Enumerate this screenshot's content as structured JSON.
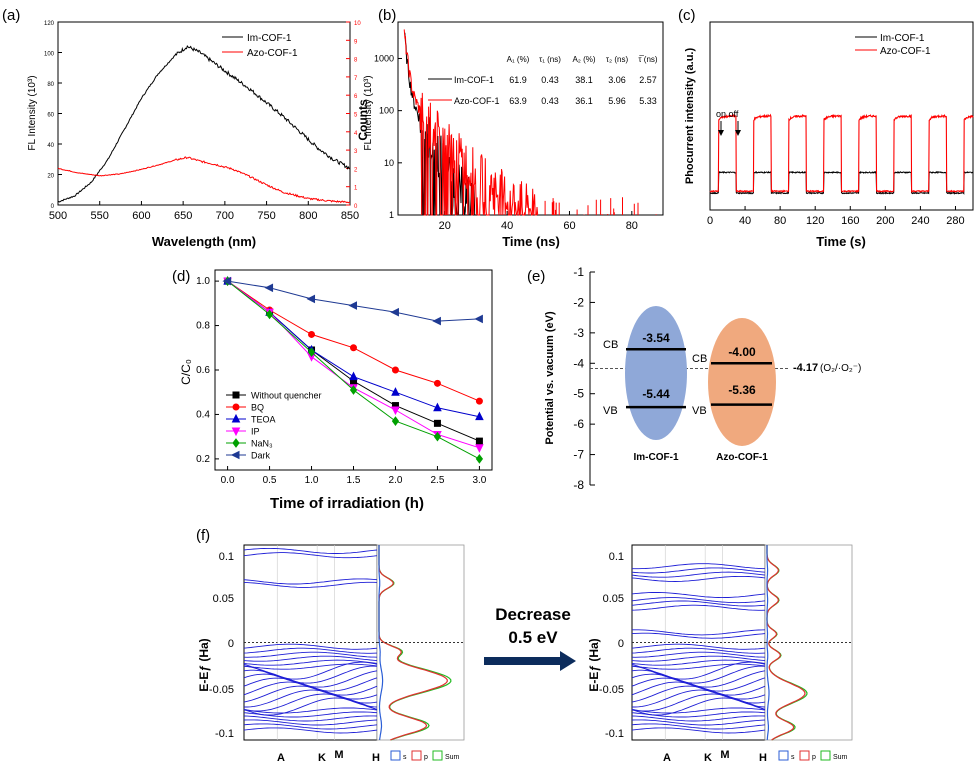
{
  "colors": {
    "black": "#000000",
    "red": "#ff0000",
    "blue": "#0000cc",
    "magenta": "#ff00ff",
    "green": "#00a000",
    "navy": "#1f3a93",
    "ellipse_blue": "#8fa8d8",
    "ellipse_orange": "#f0a97e",
    "arrow": "#0c2c5c"
  },
  "chart_data": [
    {
      "panel": "(a)",
      "type": "line",
      "xlabel": "Wavelength (nm)",
      "ylabel": "FL Intensity (10³)",
      "ylabel_right": "FL Intensity (10³)",
      "xlim": [
        500,
        850
      ],
      "ylim": [
        0,
        120
      ],
      "ylim_right": [
        0,
        10
      ],
      "x_ticks": [
        "500",
        "550",
        "600",
        "650",
        "700",
        "750",
        "800",
        "850"
      ],
      "y_ticks": [
        "0",
        "20",
        "40",
        "60",
        "80",
        "100",
        "120"
      ],
      "y_ticks_right": [
        "0",
        "1",
        "2",
        "3",
        "4",
        "5",
        "6",
        "7",
        "8",
        "9",
        "10"
      ],
      "series": [
        {
          "name": "Im-COF-1",
          "axis": "left",
          "x": [
            500,
            520,
            540,
            560,
            580,
            600,
            620,
            640,
            655,
            670,
            690,
            710,
            730,
            750,
            770,
            790,
            810,
            830,
            850
          ],
          "values": [
            2,
            6,
            15,
            30,
            50,
            70,
            86,
            98,
            104,
            100,
            92,
            84,
            76,
            67,
            58,
            48,
            38,
            30,
            24
          ]
        },
        {
          "name": "Azo-COF-1",
          "axis": "right",
          "x": [
            500,
            525,
            550,
            575,
            600,
            625,
            640,
            655,
            670,
            690,
            710,
            730,
            750,
            770,
            800,
            830,
            850
          ],
          "values": [
            2.0,
            1.75,
            1.6,
            1.7,
            1.95,
            2.25,
            2.45,
            2.6,
            2.4,
            2.2,
            1.95,
            1.55,
            1.1,
            0.7,
            0.35,
            0.2,
            0.15
          ]
        }
      ]
    },
    {
      "panel": "(b)",
      "type": "line",
      "xlabel": "Time (ns)",
      "ylabel": "Counts",
      "yscale": "log",
      "xlim": [
        5,
        90
      ],
      "ylim": [
        1,
        5000
      ],
      "x_ticks": [
        "20",
        "40",
        "60",
        "80"
      ],
      "y_ticks": [
        "1",
        "10",
        "100",
        "1000"
      ],
      "series": [
        {
          "name": "Im-COF-1",
          "x": [
            7,
            8,
            9,
            10,
            12,
            14,
            16,
            18,
            20,
            22,
            25,
            28,
            31
          ],
          "values": [
            3000,
            800,
            300,
            150,
            70,
            40,
            25,
            15,
            9,
            5,
            3,
            2,
            1
          ]
        },
        {
          "name": "Azo-COF-1",
          "x": [
            7,
            8,
            9,
            10,
            12,
            14,
            16,
            18,
            20,
            25,
            30,
            35,
            40,
            45,
            50
          ],
          "values": [
            3000,
            1000,
            400,
            200,
            100,
            65,
            45,
            32,
            24,
            12,
            6,
            3.5,
            2.2,
            1.5,
            1
          ]
        }
      ],
      "table": {
        "headers": [
          "A₁ (%)",
          "τ₁ (ns)",
          "A₂ (%)",
          "τ₂ (ns)",
          "τ̅ (ns)"
        ],
        "rows": [
          {
            "label": "Im-COF-1",
            "cells": [
              "61.9",
              "0.43",
              "38.1",
              "3.06",
              "2.57"
            ]
          },
          {
            "label": "Azo-COF-1",
            "cells": [
              "63.9",
              "0.43",
              "36.1",
              "5.96",
              "5.33"
            ]
          }
        ]
      }
    },
    {
      "panel": "(c)",
      "type": "line",
      "xlabel": "Time (s)",
      "ylabel": "Phocurrent intensity (a.u.)",
      "xlim": [
        0,
        300
      ],
      "ylim": [
        0,
        1
      ],
      "x_ticks": [
        "0",
        "40",
        "80",
        "120",
        "160",
        "200",
        "240",
        "280"
      ],
      "annotation": "on off",
      "series": [
        {
          "name": "Im-COF-1",
          "on_level": 0.2,
          "off_level": 0.09
        },
        {
          "name": "Azo-COF-1",
          "on_level": 0.48,
          "off_level": 0.1
        }
      ],
      "on_periods": [
        [
          10,
          30
        ],
        [
          50,
          70
        ],
        [
          90,
          110
        ],
        [
          130,
          150
        ],
        [
          170,
          190
        ],
        [
          210,
          230
        ],
        [
          250,
          270
        ],
        [
          290,
          310
        ]
      ]
    },
    {
      "panel": "(d)",
      "type": "line",
      "xlabel": "Time of irradiation (h)",
      "ylabel": "C/C₀",
      "xlim": [
        -0.15,
        3.15
      ],
      "ylim": [
        0.15,
        1.05
      ],
      "x_ticks": [
        "0.0",
        "0.5",
        "1.0",
        "1.5",
        "2.0",
        "2.5",
        "3.0"
      ],
      "y_ticks": [
        "0.2",
        "0.4",
        "0.6",
        "0.8",
        "1.0"
      ],
      "x": [
        0,
        0.5,
        1.0,
        1.5,
        2.0,
        2.5,
        3.0
      ],
      "series": [
        {
          "name": "Without quencher",
          "marker": "square",
          "values": [
            1.0,
            0.86,
            0.69,
            0.55,
            0.44,
            0.36,
            0.28
          ]
        },
        {
          "name": "BQ",
          "marker": "circle",
          "values": [
            1.0,
            0.87,
            0.76,
            0.7,
            0.6,
            0.54,
            0.46
          ]
        },
        {
          "name": "TEOA",
          "marker": "triangle",
          "values": [
            1.0,
            0.86,
            0.69,
            0.57,
            0.5,
            0.43,
            0.39
          ]
        },
        {
          "name": "IP",
          "marker": "triangle-down",
          "values": [
            1.0,
            0.86,
            0.66,
            0.52,
            0.42,
            0.31,
            0.25
          ]
        },
        {
          "name": "NaN₃",
          "marker": "diamond",
          "values": [
            1.0,
            0.85,
            0.68,
            0.51,
            0.37,
            0.3,
            0.2
          ]
        },
        {
          "name": "Dark",
          "marker": "triangle-left",
          "values": [
            1.0,
            0.97,
            0.92,
            0.89,
            0.86,
            0.82,
            0.83
          ]
        }
      ]
    },
    {
      "panel": "(e)",
      "type": "diagram",
      "ylabel": "Potential vs. vacuum (eV)",
      "ylim": [
        -8,
        -1
      ],
      "y_ticks": [
        "-1",
        "-2",
        "-3",
        "-4",
        "-5",
        "-6",
        "-7",
        "-8"
      ],
      "reference": {
        "value": -4.17,
        "label": "-4.17",
        "species": "(O₂/·O₂⁻)"
      },
      "materials": [
        {
          "name": "Im-COF-1",
          "cb": -3.54,
          "vb": -5.44,
          "cb_text": "-3.54",
          "vb_text": "-5.44"
        },
        {
          "name": "Azo-COF-1",
          "cb": -4.0,
          "vb": -5.36,
          "cb_text": "-4.00",
          "vb_text": "-5.36"
        }
      ],
      "cb_label": "CB",
      "vb_label": "VB"
    },
    {
      "panel": "(f)",
      "type": "line",
      "ylabel": "E-Eƒ (Ha)",
      "y_ticks": [
        "0.1",
        "0.05",
        "0",
        "-0.05",
        "-0.1"
      ],
      "k_labels": [
        "A",
        "K",
        "M",
        "H"
      ],
      "legend": [
        "s",
        "p",
        "Sum"
      ],
      "arrow_label_1": "Decrease",
      "arrow_label_2": "0.5 eV"
    }
  ]
}
